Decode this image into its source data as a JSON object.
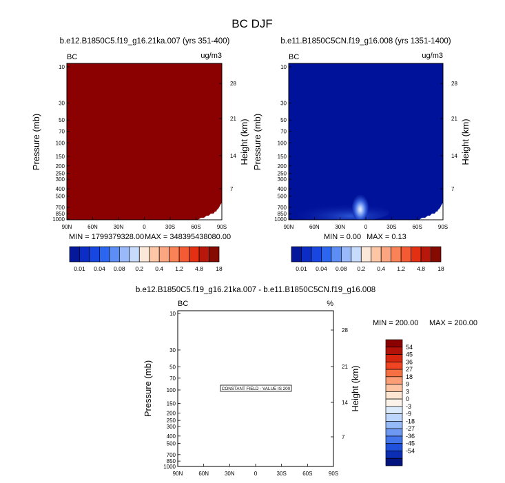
{
  "figure_title": "BC DJF",
  "chart_data": [
    {
      "type": "heatmap",
      "panel": "left",
      "title": "b.e12.B1850C5.f19_g16.21ka.007 (yrs 351-400)",
      "variable_label": "BC",
      "units_label": "ug/m3",
      "ylabel": "Pressure (mb)",
      "ylabel_right": "Height (km)",
      "x_ticks": [
        "90N",
        "60N",
        "30N",
        "0",
        "30S",
        "60S",
        "90S"
      ],
      "y_ticks": [
        "10",
        "30",
        "50",
        "70",
        "100",
        "150",
        "200",
        "250",
        "300",
        "400",
        "500",
        "700",
        "850",
        "1000"
      ],
      "y_ticks_right": [
        "28",
        "21",
        "14",
        "7"
      ],
      "x_range": [
        90,
        -90
      ],
      "y_range": [
        10,
        1000
      ],
      "y_scale": "log",
      "field_description": "uniform maximum colour everywhere, masked near 70S-90S below 700 mb",
      "min_label": "MIN = 1799379328.00",
      "max_label": "MAX = 348395438080.00"
    },
    {
      "type": "heatmap",
      "panel": "right",
      "title": "b.e11.B1850C5CN.f19_g16.008 (yrs 1351-1400)",
      "variable_label": "BC",
      "units_label": "ug/m3",
      "ylabel": "Pressure (mb)",
      "ylabel_right": "Height (km)",
      "x_ticks": [
        "90N",
        "60N",
        "30N",
        "0",
        "30S",
        "60S",
        "90S"
      ],
      "y_ticks": [
        "10",
        "30",
        "50",
        "70",
        "100",
        "150",
        "200",
        "250",
        "300",
        "400",
        "500",
        "700",
        "850",
        "1000"
      ],
      "y_ticks_right": [
        "28",
        "21",
        "14",
        "7"
      ],
      "x_range": [
        90,
        -90
      ],
      "y_range": [
        10,
        1000
      ],
      "y_scale": "log",
      "field_description": "near zero everywhere with a surface maximum near 5N, below 600 mb",
      "min_label": "MIN =   0.00",
      "max_label": "MAX =   0.13"
    },
    {
      "type": "heatmap",
      "panel": "difference",
      "title": "b.e12.B1850C5.f19_g16.21ka.007 - b.e11.B1850C5CN.f19_g16.008",
      "variable_label": "BC",
      "units_label": "%",
      "ylabel": "Pressure (mb)",
      "ylabel_right": "Height (km)",
      "x_ticks": [
        "90N",
        "60N",
        "30N",
        "0",
        "30S",
        "60S",
        "90S"
      ],
      "y_ticks": [
        "10",
        "30",
        "50",
        "70",
        "100",
        "150",
        "200",
        "250",
        "300",
        "400",
        "500",
        "700",
        "850",
        "1000"
      ],
      "y_ticks_right": [
        "28",
        "21",
        "14",
        "7"
      ],
      "x_range": [
        90,
        -90
      ],
      "y_range": [
        10,
        1000
      ],
      "y_scale": "log",
      "annotation": "CONSTANT FIELD - VALUE IS 200",
      "min_label": "MIN = 200.00",
      "max_label": "MAX = 200.00"
    }
  ],
  "colorbar_horizontal": {
    "labels": [
      "0.01",
      "0.04",
      "0.08",
      "0.2",
      "0.4",
      "1.2",
      "4.8",
      "18"
    ],
    "colors": [
      "#05179a",
      "#0b2dc6",
      "#1747e0",
      "#2c66f0",
      "#5c8ef5",
      "#9ab9fb",
      "#c7dbfd",
      "#fbe8d8",
      "#fdc7a5",
      "#fca681",
      "#f98357",
      "#f45a34",
      "#e32f12",
      "#b8180b",
      "#850a02"
    ]
  },
  "colorbar_vertical": {
    "labels": [
      "54",
      "45",
      "36",
      "27",
      "18",
      "9",
      "3",
      "0",
      "-3",
      "-9",
      "-18",
      "-27",
      "-36",
      "-45",
      "-54"
    ],
    "colors": [
      "#8b0000",
      "#b31208",
      "#d8270e",
      "#ef4523",
      "#f77042",
      "#fb9d75",
      "#fcc4a3",
      "#fde5d2",
      "#fbf3ea",
      "#dcebfc",
      "#bcd5fb",
      "#96b9f7",
      "#6e99f3",
      "#4275ec",
      "#1f51dc",
      "#0b2eb4",
      "#03137e"
    ]
  },
  "colors": {
    "max_fill": "#8b0000",
    "low_fill": "#00129a"
  }
}
